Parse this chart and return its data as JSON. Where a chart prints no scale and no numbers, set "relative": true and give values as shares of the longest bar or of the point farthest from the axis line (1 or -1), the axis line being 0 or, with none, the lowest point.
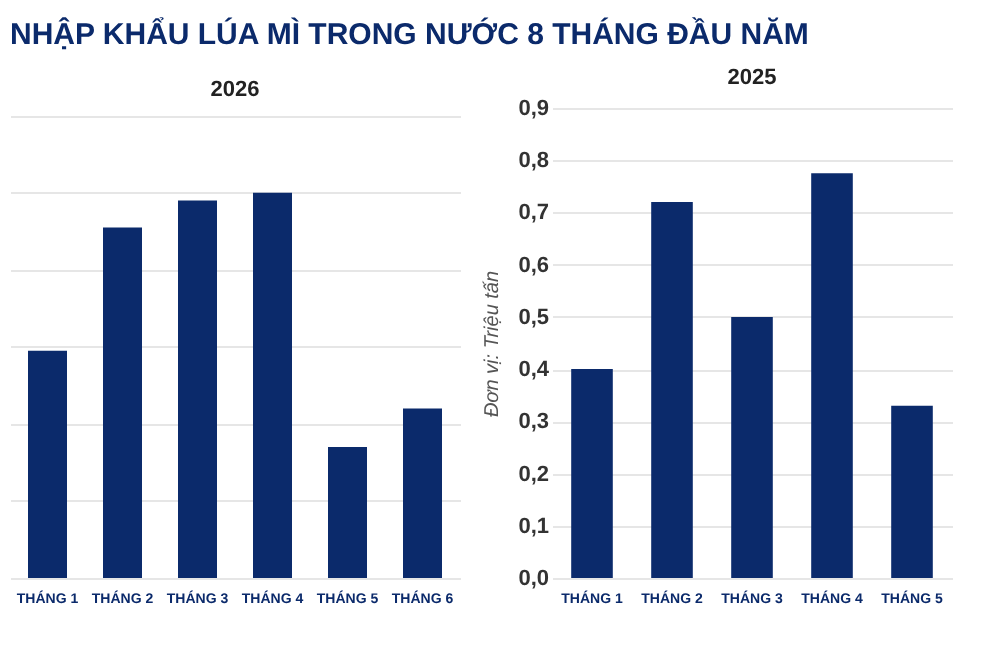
{
  "chart_data": [
    {
      "type": "bar",
      "title": "NHẬP KHẨU LÚA MÌ TRONG NƯỚC 8 THÁNG ĐẦU NĂM",
      "subtitle": "2026",
      "categories": [
        "THÁNG 1",
        "THÁNG 2",
        "THÁNG 3",
        "THÁNG 4",
        "THÁNG 5",
        "THÁNG 6"
      ],
      "values": [
        0.59,
        0.91,
        0.98,
        1,
        0.34,
        0.44
      ],
      "color": "#0b2a6b",
      "relative": true,
      "grid": "y"
    },
    {
      "type": "bar",
      "title": "2025",
      "ylabel": "Đơn vị: Triệu tấn",
      "categories": [
        "THÁNG 1",
        "THÁNG 2",
        "THÁNG 3",
        "THÁNG 4",
        "THÁNG 5"
      ],
      "values": [
        0.4,
        0.72,
        0.5,
        0.775,
        0.33
      ],
      "color": "#0b2a6b",
      "ylim": [
        0,
        0.9
      ],
      "yticks": [
        {
          "value": 0,
          "label": "0,0"
        },
        {
          "value": 0.1,
          "label": "0,1"
        },
        {
          "value": 0.2,
          "label": "0,2"
        },
        {
          "value": 0.3,
          "label": "0,3"
        },
        {
          "value": 0.4,
          "label": "0,4"
        },
        {
          "value": 0.5,
          "label": "0,5"
        },
        {
          "value": 0.6,
          "label": "0,6"
        },
        {
          "value": 0.7,
          "label": "0,7"
        },
        {
          "value": 0.8,
          "label": "0,8"
        },
        {
          "value": 0.9,
          "label": "0,9"
        }
      ],
      "grid": "y"
    }
  ]
}
